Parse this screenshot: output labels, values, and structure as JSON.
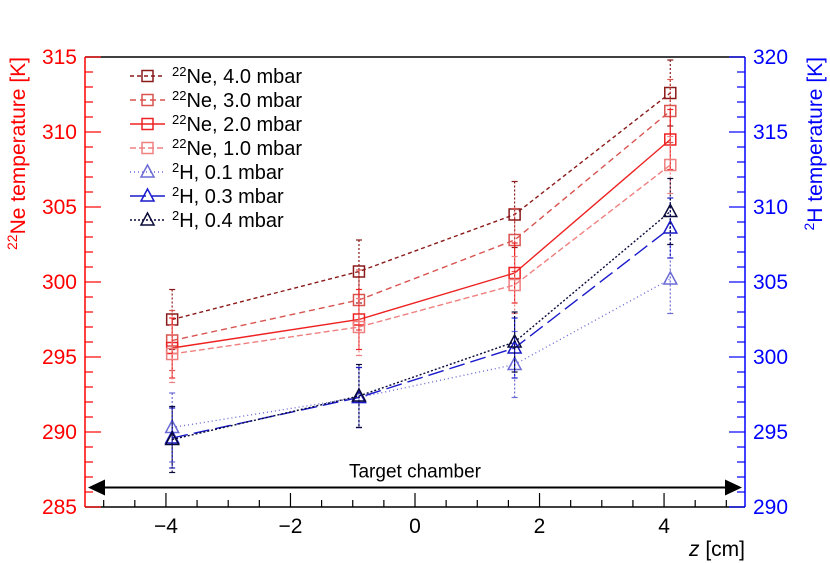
{
  "chart_data": {
    "type": "line",
    "xlabel": "z",
    "xlabel_unit": "[cm]",
    "xlim": [
      -5.3,
      5.3
    ],
    "x_ticks": [
      "−4",
      "−2",
      "0",
      "2",
      "4"
    ],
    "x_tick_values": [
      -4,
      -2,
      0,
      2,
      4
    ],
    "ylabel_left_sup": "22",
    "ylabel_left_text": "Ne temperature [K]",
    "ylim_left": [
      285,
      315
    ],
    "y_left_ticks": [
      "285",
      "290",
      "295",
      "300",
      "305",
      "310",
      "315"
    ],
    "y_left_tick_values": [
      285,
      290,
      295,
      300,
      305,
      310,
      315
    ],
    "ylabel_right_sup": "2",
    "ylabel_right_text": "H temperature [K]",
    "ylim_right": [
      290,
      320
    ],
    "y_right_ticks": [
      "290",
      "295",
      "300",
      "305",
      "310",
      "315",
      "320"
    ],
    "y_right_tick_values": [
      290,
      295,
      300,
      305,
      310,
      315,
      320
    ],
    "annotation": {
      "text": "Target chamber",
      "x_from": -5.3,
      "x_to": 5.3,
      "y_left": 286.3
    },
    "colors": {
      "red": "#ff0000",
      "blue": "#0000ff",
      "axis": "#000000"
    },
    "series": [
      {
        "name_sup": "22",
        "name_text": "Ne, 4.0 mbar",
        "axis": "left",
        "marker": "square",
        "color": "#8b1a1a",
        "dash": "4,3",
        "x": [
          -3.9,
          -0.9,
          1.6,
          4.1
        ],
        "y": [
          297.5,
          300.7,
          304.5,
          312.6
        ],
        "err": [
          2.0,
          2.1,
          2.2,
          2.2
        ]
      },
      {
        "name_sup": "22",
        "name_text": "Ne, 3.0 mbar",
        "axis": "left",
        "marker": "square",
        "color": "#d9534f",
        "dash": "6,4",
        "x": [
          -3.9,
          -0.9,
          1.6,
          4.1
        ],
        "y": [
          296.1,
          298.8,
          302.8,
          311.4
        ],
        "err": [
          2.0,
          2.0,
          2.1,
          2.1
        ]
      },
      {
        "name_sup": "22",
        "name_text": "Ne, 2.0 mbar",
        "axis": "left",
        "marker": "square",
        "color": "#ee2222",
        "dash": "",
        "x": [
          -3.9,
          -0.9,
          1.6,
          4.1
        ],
        "y": [
          295.6,
          297.5,
          300.6,
          309.5
        ],
        "err": [
          2.0,
          2.0,
          2.0,
          2.0
        ]
      },
      {
        "name_sup": "22",
        "name_text": "Ne, 1.0 mbar",
        "axis": "left",
        "marker": "square",
        "color": "#f08080",
        "dash": "6,3",
        "x": [
          -3.9,
          -0.9,
          1.6,
          4.1
        ],
        "y": [
          295.2,
          297.0,
          299.8,
          307.8
        ],
        "err": [
          1.9,
          1.9,
          1.9,
          1.9
        ]
      },
      {
        "name_sup": "2",
        "name_text": "H, 0.1 mbar",
        "axis": "right",
        "marker": "triangle",
        "color": "#6b6bd6",
        "dash": "1,3",
        "x": [
          -3.9,
          -0.9,
          1.6,
          4.1
        ],
        "y": [
          295.3,
          297.3,
          299.5,
          305.2
        ],
        "err": [
          2.3,
          2.0,
          2.2,
          2.3
        ]
      },
      {
        "name_sup": "2",
        "name_text": "H, 0.3 mbar",
        "axis": "right",
        "marker": "triangle",
        "color": "#1a1acc",
        "dash": "16,6",
        "x": [
          -3.9,
          -0.9,
          1.6,
          4.1
        ],
        "y": [
          294.6,
          297.3,
          300.6,
          308.6
        ],
        "err": [
          2.0,
          2.0,
          2.0,
          2.0
        ]
      },
      {
        "name_sup": "2",
        "name_text": "H, 0.4 mbar",
        "axis": "right",
        "marker": "triangle",
        "color": "#0a0a3a",
        "dash": "2,2",
        "x": [
          -3.9,
          -0.9,
          1.6,
          4.1
        ],
        "y": [
          294.5,
          297.4,
          301.0,
          309.7
        ],
        "err": [
          2.2,
          2.1,
          2.0,
          2.2
        ]
      }
    ]
  }
}
